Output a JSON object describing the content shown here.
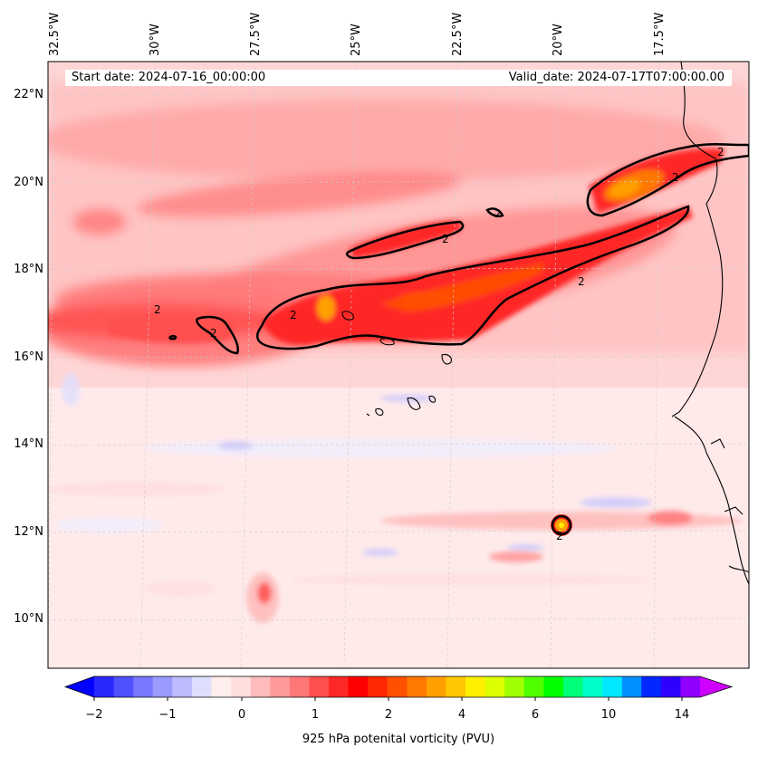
{
  "map": {
    "start_label": "Start date: 2024-07-16_00:00:00",
    "valid_label": "Valid_date: 2024-07-17T07:00:00.00",
    "lon_labels": [
      "32.5°W",
      "30°W",
      "27.5°W",
      "25°W",
      "22.5°W",
      "20°W",
      "17.5°W"
    ],
    "lat_labels": [
      "22°N",
      "20°N",
      "18°N",
      "16°N",
      "14°N",
      "12°N",
      "10°N"
    ],
    "contour_label": "2"
  },
  "colorbar": {
    "title": "925 hPa potenital vorticity (PVU)",
    "tick_labels": [
      "−2",
      "−1",
      "0",
      "1",
      "2",
      "4",
      "6",
      "10",
      "14"
    ],
    "colors": [
      "#0000ff",
      "#2828ff",
      "#5050ff",
      "#7878ff",
      "#9a9aff",
      "#bcbcff",
      "#dedeff",
      "#ffeeee",
      "#ffdede",
      "#ffbcbc",
      "#ff9a9a",
      "#ff7878",
      "#ff5050",
      "#ff2828",
      "#ff0000",
      "#ff2800",
      "#ff5000",
      "#ff7800",
      "#ffa000",
      "#ffc800",
      "#fff000",
      "#dcff00",
      "#a0ff00",
      "#50ff00",
      "#00ff00",
      "#00ff78",
      "#00ffc8",
      "#00e8ff",
      "#0090ff",
      "#0028ff",
      "#3000ff",
      "#9000ff",
      "#d000ff"
    ]
  }
}
